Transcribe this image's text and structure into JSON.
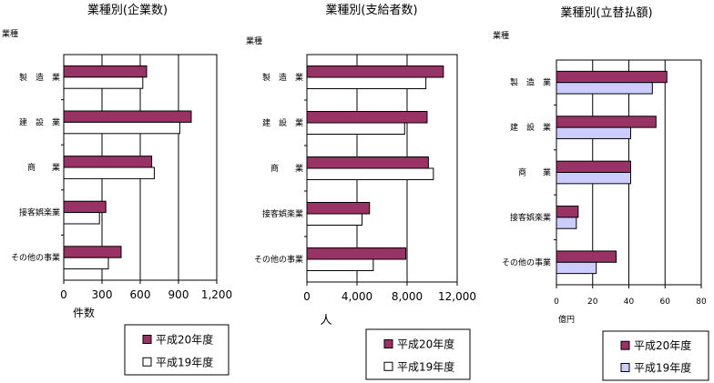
{
  "colors": {
    "current": "#993366",
    "previous": "#ffffff",
    "previous_alt": "#ccccff"
  },
  "chart_data": [
    {
      "type": "bar",
      "orientation": "horizontal",
      "title": "業種別(企業数)",
      "category_axis_label": "業種",
      "value_axis_label": "件数",
      "categories": [
        "製　造　業",
        "建　設　業",
        "商　　業",
        "接客娯楽業",
        "その他の事業"
      ],
      "series": [
        {
          "name": "平成20年度",
          "values": [
            650,
            1000,
            690,
            330,
            450
          ]
        },
        {
          "name": "平成19年度",
          "values": [
            620,
            910,
            710,
            280,
            350
          ]
        }
      ],
      "ticks": [
        "0",
        "300",
        "600",
        "900",
        "1,200"
      ],
      "xlim": [
        0,
        1200
      ],
      "grid": true,
      "legend_position": "bottom-right"
    },
    {
      "type": "bar",
      "orientation": "horizontal",
      "title": "業種別(支給者数)",
      "category_axis_label": "業種",
      "value_axis_label": "人",
      "categories": [
        "製　造　業",
        "建　設　業",
        "商　　業",
        "接客娯楽業",
        "その他の事業"
      ],
      "series": [
        {
          "name": "平成20年度",
          "values": [
            10900,
            9600,
            9700,
            5000,
            7900
          ]
        },
        {
          "name": "平成19年度",
          "values": [
            9500,
            7800,
            10100,
            4400,
            5300
          ]
        }
      ],
      "ticks": [
        "0",
        "4,000",
        "8,000",
        "12,000"
      ],
      "xlim": [
        0,
        12000
      ],
      "grid": true,
      "legend_position": "bottom-right"
    },
    {
      "type": "bar",
      "orientation": "horizontal",
      "title": "業種別(立替払額)",
      "category_axis_label": "業種",
      "value_axis_label": "億円",
      "categories": [
        "製　造　業",
        "建　設　業",
        "商　　業",
        "接客娯楽業",
        "その他の事業"
      ],
      "series": [
        {
          "name": "平成20年度",
          "values": [
            61,
            55,
            41,
            12,
            33
          ]
        },
        {
          "name": "平成19年度",
          "values": [
            53,
            41,
            41,
            11,
            22
          ]
        }
      ],
      "ticks": [
        "0",
        "20",
        "40",
        "60",
        "80"
      ],
      "xlim": [
        0,
        80
      ],
      "grid": true,
      "legend_position": "bottom-right"
    }
  ]
}
